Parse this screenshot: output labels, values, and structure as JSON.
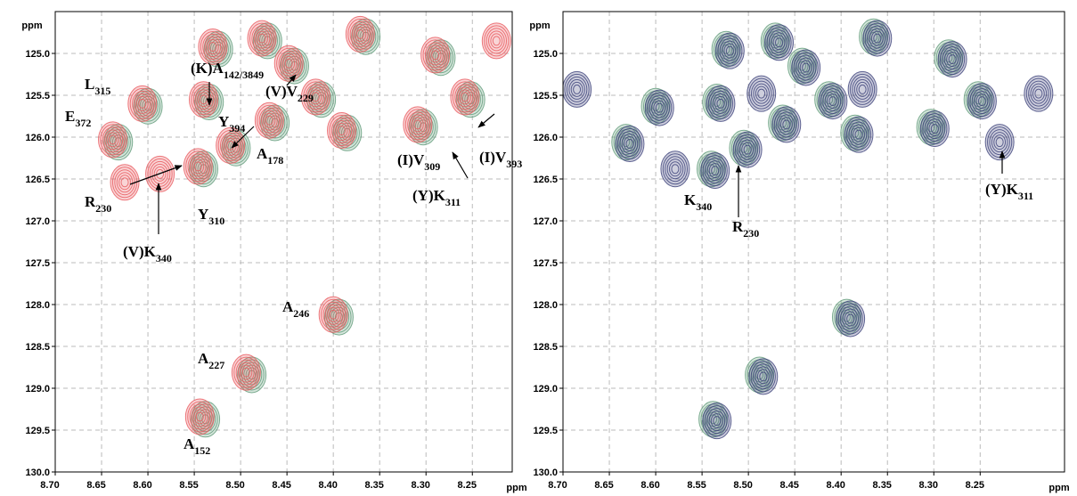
{
  "chart_data": [
    {
      "type": "contour",
      "x_label": "ppm",
      "y_label": "ppm",
      "xlim": [
        8.7,
        8.207
      ],
      "ylim": [
        130.0,
        124.5
      ],
      "xticks": [
        {
          "value": 8.7,
          "label": "8.70"
        },
        {
          "value": 8.65,
          "label": "8.65"
        },
        {
          "value": 8.6,
          "label": "8.60"
        },
        {
          "value": 8.55,
          "label": "8.55"
        },
        {
          "value": 8.5,
          "label": "8.50"
        },
        {
          "value": 8.45,
          "label": "8.45"
        },
        {
          "value": 8.4,
          "label": "8.40"
        },
        {
          "value": 8.35,
          "label": "8.35"
        },
        {
          "value": 8.3,
          "label": "8.30"
        },
        {
          "value": 8.25,
          "label": "8.25"
        }
      ],
      "yticks": [
        {
          "value": 125,
          "label": "125.0"
        },
        125.5,
        {
          "value": 126,
          "label": "126.0"
        },
        126.5,
        {
          "value": 127,
          "label": "127.0"
        },
        127.5,
        {
          "value": 128,
          "label": "128.0"
        },
        128.5,
        {
          "value": 129,
          "label": "129.0"
        },
        129.5,
        {
          "value": 130,
          "label": "130.0"
        }
      ],
      "grid": true,
      "series": [
        {
          "color": "#5f9a78",
          "x": [
            8.6,
            8.632,
            8.534,
            8.54,
            8.505,
            8.463,
            8.394,
            8.488,
            8.538,
            8.303,
            8.252,
            8.284,
            8.385,
            8.442,
            8.365,
            8.471,
            8.524,
            8.413
          ],
          "y": [
            125.63,
            126.06,
            125.58,
            126.38,
            126.13,
            125.83,
            128.15,
            128.84,
            129.37,
            125.88,
            125.55,
            125.05,
            125.95,
            125.15,
            124.8,
            124.85,
            124.95,
            125.55
          ]
        },
        {
          "color": "#e8585c",
          "x": [
            8.606,
            8.638,
            8.54,
            8.546,
            8.511,
            8.469,
            8.4,
            8.494,
            8.544,
            8.309,
            8.258,
            8.29,
            8.391,
            8.448,
            8.371,
            8.477,
            8.53,
            8.419,
            8.625,
            8.587,
            8.224
          ],
          "y": [
            125.6,
            126.03,
            125.55,
            126.35,
            126.1,
            125.8,
            128.12,
            128.81,
            129.34,
            125.85,
            125.52,
            125.02,
            125.92,
            125.12,
            124.77,
            124.82,
            124.92,
            125.52,
            126.54,
            126.44,
            124.85
          ]
        }
      ],
      "annotations": [
        {
          "text": "L",
          "sub": "315"
        },
        {
          "text": "E",
          "sub": "372"
        },
        {
          "text": "(K)A",
          "sub": "142/3849"
        },
        {
          "text": "(V)V",
          "sub": "229"
        },
        {
          "text": "Y",
          "sub": "394"
        },
        {
          "text": "A",
          "sub": "178"
        },
        {
          "text": "(I)V",
          "sub": "309"
        },
        {
          "text": "(I)V",
          "sub": "393"
        },
        {
          "text": "(Y)K",
          "sub": "311"
        },
        {
          "text": "R",
          "sub": "230"
        },
        {
          "text": "Y",
          "sub": "310"
        },
        {
          "text": "(V)K",
          "sub": "340"
        },
        {
          "text": "A",
          "sub": "246"
        },
        {
          "text": "A",
          "sub": "227"
        },
        {
          "text": "A",
          "sub": "152"
        }
      ]
    },
    {
      "type": "contour",
      "x_label": "ppm",
      "y_label": "ppm",
      "xlim": [
        8.7,
        8.159
      ],
      "ylim": [
        130.0,
        124.5
      ],
      "xticks": [
        {
          "value": 8.7,
          "label": "8.70"
        },
        {
          "value": 8.65,
          "label": "8.65"
        },
        {
          "value": 8.6,
          "label": "8.60"
        },
        {
          "value": 8.55,
          "label": "8.55"
        },
        {
          "value": 8.5,
          "label": "8.50"
        },
        {
          "value": 8.45,
          "label": "8.45"
        },
        {
          "value": 8.4,
          "label": "8.40"
        },
        {
          "value": 8.35,
          "label": "8.35"
        },
        {
          "value": 8.3,
          "label": "8.30"
        },
        {
          "value": 8.25,
          "label": "8.25"
        }
      ],
      "yticks": [
        {
          "value": 125,
          "label": "125.0"
        },
        125.5,
        {
          "value": 126,
          "label": "126.0"
        },
        126.5,
        {
          "value": 127,
          "label": "127.0"
        },
        127.5,
        {
          "value": 128,
          "label": "128.0"
        },
        128.5,
        {
          "value": 129,
          "label": "129.0"
        },
        129.5,
        {
          "value": 130,
          "label": "130.0"
        }
      ],
      "grid": true,
      "series": [
        {
          "color": "#5f9a78",
          "x": [
            8.6,
            8.632,
            8.534,
            8.54,
            8.505,
            8.463,
            8.394,
            8.488,
            8.538,
            8.303,
            8.252,
            8.284,
            8.385,
            8.442,
            8.365,
            8.471,
            8.524,
            8.413
          ],
          "y": [
            125.63,
            126.06,
            125.58,
            126.38,
            126.13,
            125.83,
            128.15,
            128.84,
            129.37,
            125.88,
            125.55,
            125.05,
            125.95,
            125.15,
            124.8,
            124.85,
            124.95,
            125.55
          ]
        },
        {
          "color": "#3a3f78",
          "x": [
            8.596,
            8.628,
            8.53,
            8.536,
            8.501,
            8.459,
            8.39,
            8.484,
            8.534,
            8.299,
            8.248,
            8.28,
            8.381,
            8.438,
            8.361,
            8.467,
            8.52,
            8.409,
            8.579,
            8.685,
            8.486,
            8.377,
            8.229,
            8.187
          ],
          "y": [
            125.65,
            126.08,
            125.6,
            126.4,
            126.15,
            125.85,
            128.17,
            128.86,
            129.39,
            125.9,
            125.57,
            125.07,
            125.97,
            125.17,
            124.82,
            124.87,
            124.97,
            125.57,
            126.38,
            125.43,
            125.48,
            125.43,
            126.06,
            125.48
          ]
        }
      ],
      "annotations": [
        {
          "text": "K",
          "sub": "340"
        },
        {
          "text": "R",
          "sub": "230"
        },
        {
          "text": "(Y)K",
          "sub": "311"
        }
      ]
    }
  ]
}
